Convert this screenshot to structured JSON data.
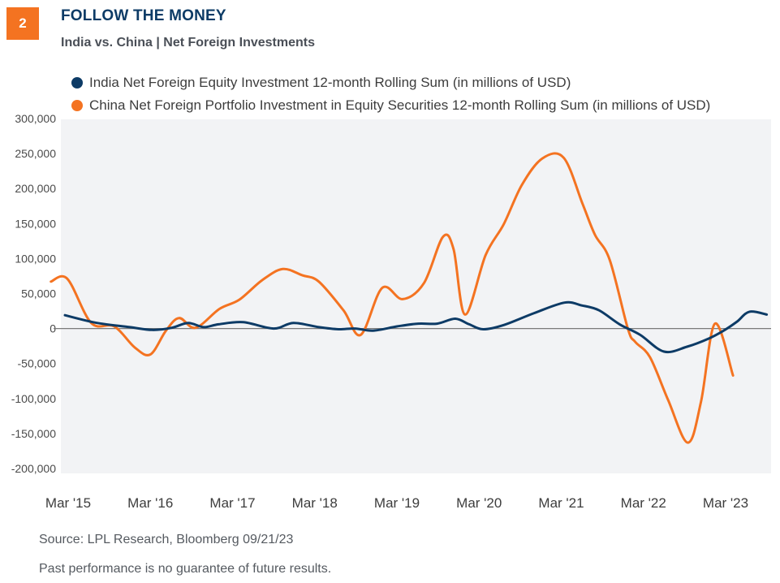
{
  "header": {
    "badge_number": "2",
    "title": "FOLLOW THE MONEY",
    "subtitle": "India vs. China | Net Foreign Investments"
  },
  "colors": {
    "india": "#0d3b66",
    "china": "#f47321",
    "plot_background": "#f2f3f5",
    "badge": "#f47321"
  },
  "footer": {
    "source": "Source: LPL Research, Bloomberg 09/21/23",
    "disclaimer": "Past performance is no guarantee of future results."
  },
  "chart_data": {
    "type": "line",
    "title": "FOLLOW THE MONEY",
    "subtitle": "India vs. China | Net Foreign Investments",
    "xlabel": "",
    "ylabel": "",
    "ylim": [
      -200000,
      300000
    ],
    "yticks": [
      300000,
      250000,
      200000,
      150000,
      100000,
      50000,
      0,
      -50000,
      -100000,
      -150000,
      -200000
    ],
    "ytick_labels": [
      "300,000",
      "250,000",
      "200,000",
      "150,000",
      "100,000",
      "50,000",
      "0",
      "-50,000",
      "-100,000",
      "-150,000",
      "-200,000"
    ],
    "xlim": [
      2014.92,
      2023.55
    ],
    "xticks": [
      2015.17,
      2016.17,
      2017.17,
      2018.17,
      2019.17,
      2020.17,
      2021.17,
      2022.17,
      2023.17
    ],
    "xtick_labels": [
      "Mar '15",
      "Mar '16",
      "Mar '17",
      "Mar '18",
      "Mar '19",
      "Mar '20",
      "Mar '21",
      "Mar '22",
      "Mar '23"
    ],
    "grid": false,
    "zero_line": true,
    "legend_position": "top",
    "series": [
      {
        "name": "India Net Foreign Equity Investment 12-month Rolling Sum (in millions of USD)",
        "color": "#0d3b66",
        "x": [
          2015.13,
          2015.52,
          2015.92,
          2016.19,
          2016.43,
          2016.63,
          2016.82,
          2017.0,
          2017.3,
          2017.67,
          2017.91,
          2018.22,
          2018.46,
          2018.66,
          2018.88,
          2019.17,
          2019.43,
          2019.66,
          2019.88,
          2020.05,
          2020.22,
          2020.47,
          2020.84,
          2021.21,
          2021.42,
          2021.63,
          2021.88,
          2022.13,
          2022.42,
          2022.7,
          2022.97,
          2023.16,
          2023.31,
          2023.46,
          2023.67
        ],
        "values": [
          19000,
          8000,
          2000,
          -2000,
          1000,
          8000,
          2000,
          6000,
          9000,
          0,
          8000,
          2000,
          -1000,
          0,
          -3000,
          3000,
          7000,
          7000,
          14000,
          6000,
          -1000,
          5000,
          22000,
          37000,
          33000,
          26000,
          6000,
          -9000,
          -33000,
          -26000,
          -14000,
          -2000,
          10000,
          24000,
          20000
        ]
      },
      {
        "name": "China Net Foreign Portfolio Investment in Equity Securities 12-month Rolling Sum (in millions of USD)",
        "color": "#f47321",
        "x": [
          2014.96,
          2015.16,
          2015.45,
          2015.73,
          2015.98,
          2016.17,
          2016.36,
          2016.52,
          2016.72,
          2017.01,
          2017.25,
          2017.53,
          2017.78,
          2018.02,
          2018.22,
          2018.52,
          2018.73,
          2018.99,
          2019.24,
          2019.5,
          2019.73,
          2019.86,
          2020.0,
          2020.25,
          2020.47,
          2020.69,
          2020.94,
          2021.2,
          2021.43,
          2021.58,
          2021.76,
          2021.98,
          2022.07,
          2022.25,
          2022.47,
          2022.71,
          2022.87,
          2023.04,
          2023.26
        ],
        "values": [
          67000,
          71000,
          8000,
          3000,
          -27000,
          -37000,
          -3000,
          15000,
          1000,
          28000,
          41000,
          69000,
          85000,
          76000,
          67000,
          26000,
          -9000,
          58000,
          42000,
          65000,
          131000,
          113000,
          20000,
          105000,
          149000,
          205000,
          243000,
          244000,
          178000,
          134000,
          98000,
          0,
          -19000,
          -41000,
          -102000,
          -163000,
          -105000,
          7000,
          -67000
        ]
      }
    ]
  }
}
